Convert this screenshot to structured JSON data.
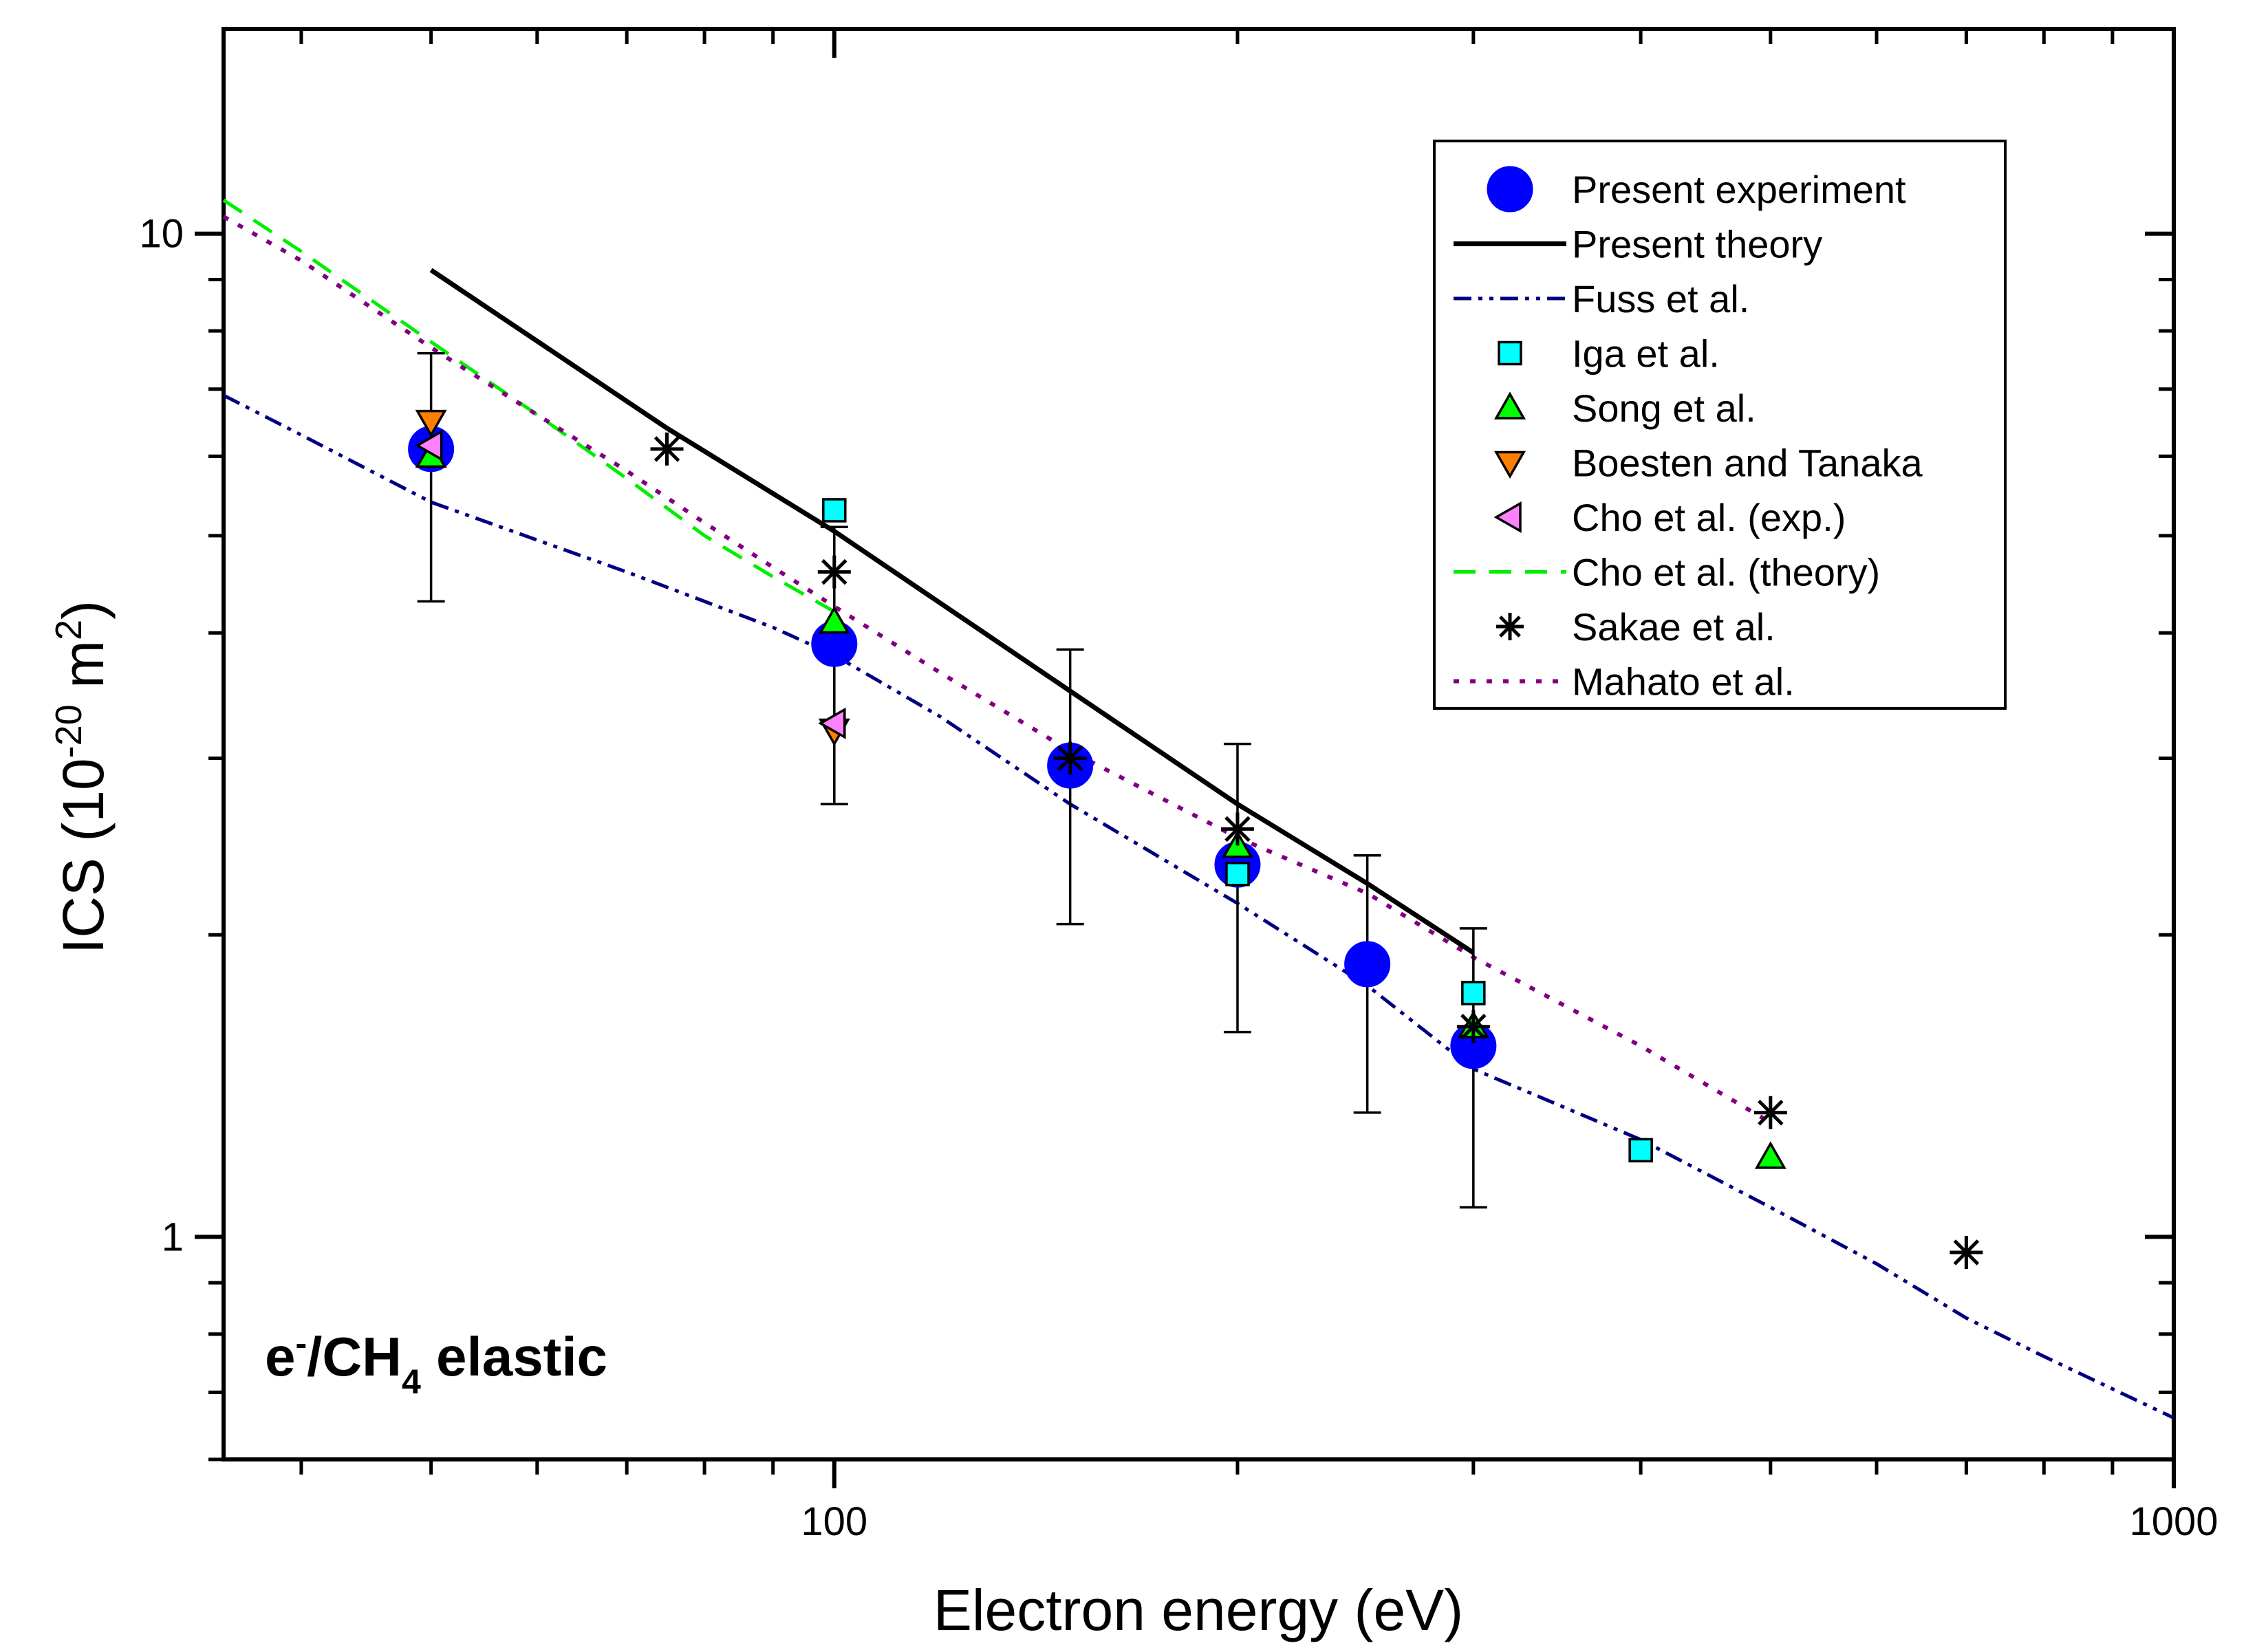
{
  "chart_data": {
    "type": "scatter",
    "annotation": {
      "main": "e",
      "sup": "-",
      "slash": "/CH",
      "sub": "4",
      "tail": " elastic"
    },
    "xlabel": "Electron energy (eV)",
    "ylabel": {
      "main": "ICS (10",
      "exp": "-20",
      "mid": " m",
      "exp2": "2",
      "end": ")"
    },
    "xscale": "log",
    "yscale": "log",
    "xlim": [
      35,
      1000
    ],
    "ylim": [
      0.6,
      16
    ],
    "xticks": [
      100,
      1000
    ],
    "xtick_labels": [
      "100",
      "1000"
    ],
    "yticks": [
      1,
      10
    ],
    "ytick_labels": [
      "1",
      "10"
    ],
    "grid": false,
    "legend_position": "top-right",
    "series": [
      {
        "name": "Present experiment",
        "marker": "circle",
        "color": "#0000ff",
        "points": [
          {
            "x": 50,
            "y": 6.1,
            "yerr_low": 4.3,
            "yerr_high": 7.6
          },
          {
            "x": 100,
            "y": 3.9,
            "yerr_low": 2.7,
            "yerr_high": 5.1
          },
          {
            "x": 150,
            "y": 2.95,
            "yerr_low": 2.05,
            "yerr_high": 3.85
          },
          {
            "x": 200,
            "y": 2.35,
            "yerr_low": 1.6,
            "yerr_high": 3.1
          },
          {
            "x": 250,
            "y": 1.87,
            "yerr_low": 1.33,
            "yerr_high": 2.4
          },
          {
            "x": 300,
            "y": 1.55,
            "yerr_low": 1.07,
            "yerr_high": 2.03
          }
        ]
      },
      {
        "name": "Present theory",
        "style": "solid",
        "color": "#000000",
        "x": [
          50,
          75,
          100,
          150,
          200,
          250,
          300
        ],
        "y": [
          9.2,
          6.4,
          5.05,
          3.5,
          2.7,
          2.25,
          1.92
        ]
      },
      {
        "name": "Fuss et al.",
        "style": "dashdotdot",
        "color": "#000080",
        "x": [
          35,
          40,
          50,
          60,
          70,
          80,
          90,
          100,
          120,
          150,
          200,
          250,
          300,
          400,
          500,
          600,
          700,
          800,
          1000
        ],
        "y": [
          6.9,
          6.3,
          5.4,
          4.95,
          4.6,
          4.3,
          4.05,
          3.8,
          3.3,
          2.7,
          2.15,
          1.78,
          1.47,
          1.25,
          1.07,
          0.94,
          0.83,
          0.76,
          0.66
        ]
      },
      {
        "name": "Iga et al.",
        "marker": "square",
        "color": "#00ffff",
        "x": [
          100,
          200,
          300,
          400
        ],
        "y": [
          5.3,
          2.3,
          1.75,
          1.22
        ]
      },
      {
        "name": "Song et al.",
        "marker": "triangle-up",
        "color": "#00ff00",
        "x": [
          50,
          100,
          200,
          300,
          500
        ],
        "y": [
          6.0,
          4.1,
          2.45,
          1.62,
          1.2
        ]
      },
      {
        "name": "Boesten and Tanaka",
        "marker": "triangle-down",
        "color": "#ff8000",
        "x": [
          50,
          100
        ],
        "y": [
          6.5,
          3.2
        ]
      },
      {
        "name": "Cho et al. (exp.)",
        "marker": "triangle-left",
        "color": "#ff80ff",
        "x": [
          50,
          100
        ],
        "y": [
          6.15,
          3.25
        ]
      },
      {
        "name": "Cho et al. (theory)",
        "style": "dashed",
        "color": "#00ee00",
        "x": [
          35,
          40,
          50,
          60,
          70,
          80,
          90,
          100
        ],
        "y": [
          10.8,
          9.6,
          7.8,
          6.6,
          5.7,
          5.0,
          4.55,
          4.2
        ]
      },
      {
        "name": "Sakae et al.",
        "marker": "asterisk",
        "color": "#000000",
        "x": [
          75,
          100,
          150,
          200,
          300,
          500,
          700
        ],
        "y": [
          6.1,
          4.6,
          3.0,
          2.55,
          1.62,
          1.33,
          0.965
        ]
      },
      {
        "name": "Mahato et al.",
        "style": "dotted",
        "color": "#800080",
        "x": [
          35,
          40,
          50,
          60,
          70,
          80,
          90,
          100,
          120,
          150,
          200,
          250,
          300,
          400,
          500
        ],
        "y": [
          10.4,
          9.4,
          7.7,
          6.6,
          5.8,
          5.15,
          4.65,
          4.25,
          3.65,
          3.05,
          2.5,
          2.2,
          1.9,
          1.55,
          1.3
        ]
      }
    ]
  }
}
